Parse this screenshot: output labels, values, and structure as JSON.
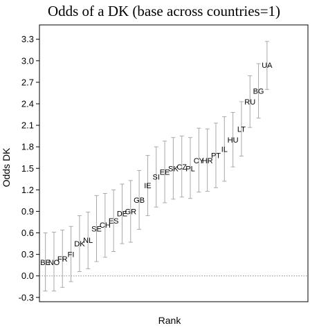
{
  "chart_data": {
    "type": "scatter",
    "title": "Odds of a DK (base across countries=1)",
    "xlabel": "Rank",
    "ylabel": "Odds DK",
    "ylim": [
      -0.36,
      3.5
    ],
    "xlim": [
      0.3,
      31.8
    ],
    "yticks": [
      "-0.3",
      "0.0",
      "0.3",
      "0.6",
      "0.9",
      "1.2",
      "1.5",
      "1.8",
      "2.1",
      "2.4",
      "2.7",
      "3.0",
      "3.3"
    ],
    "reference_line": 0.0,
    "grid": false,
    "legend": "none",
    "error_bar_color": "#a8a8a8",
    "points": [
      {
        "label": "BE",
        "x": 1,
        "y": 0.19,
        "lo": -0.21,
        "hi": 0.6
      },
      {
        "label": "NO",
        "x": 2,
        "y": 0.19,
        "lo": -0.21,
        "hi": 0.61
      },
      {
        "label": "FR",
        "x": 3,
        "y": 0.24,
        "lo": -0.16,
        "hi": 0.64
      },
      {
        "label": "FI",
        "x": 4,
        "y": 0.3,
        "lo": -0.08,
        "hi": 0.69
      },
      {
        "label": "DK",
        "x": 5,
        "y": 0.45,
        "lo": 0.06,
        "hi": 0.84
      },
      {
        "label": "NL",
        "x": 6,
        "y": 0.5,
        "lo": 0.1,
        "hi": 0.89
      },
      {
        "label": "SE",
        "x": 7,
        "y": 0.66,
        "lo": 0.2,
        "hi": 1.12
      },
      {
        "label": "CH",
        "x": 8,
        "y": 0.71,
        "lo": 0.26,
        "hi": 1.15
      },
      {
        "label": "ES",
        "x": 9,
        "y": 0.77,
        "lo": 0.34,
        "hi": 1.2
      },
      {
        "label": "DE",
        "x": 10,
        "y": 0.87,
        "lo": 0.45,
        "hi": 1.28
      },
      {
        "label": "GR",
        "x": 11,
        "y": 0.9,
        "lo": 0.47,
        "hi": 1.33
      },
      {
        "label": "GB",
        "x": 12,
        "y": 1.06,
        "lo": 0.65,
        "hi": 1.47
      },
      {
        "label": "IE",
        "x": 13,
        "y": 1.26,
        "lo": 0.84,
        "hi": 1.68
      },
      {
        "label": "SI",
        "x": 14,
        "y": 1.38,
        "lo": 0.96,
        "hi": 1.8
      },
      {
        "label": "EE",
        "x": 15,
        "y": 1.45,
        "lo": 1.02,
        "hi": 1.88
      },
      {
        "label": "SK",
        "x": 16,
        "y": 1.5,
        "lo": 1.07,
        "hi": 1.93
      },
      {
        "label": "CZ",
        "x": 17,
        "y": 1.52,
        "lo": 1.1,
        "hi": 1.95
      },
      {
        "label": "PL",
        "x": 18,
        "y": 1.5,
        "lo": 1.08,
        "hi": 1.93
      },
      {
        "label": "CY",
        "x": 19,
        "y": 1.61,
        "lo": 1.17,
        "hi": 2.06
      },
      {
        "label": "HR",
        "x": 20,
        "y": 1.61,
        "lo": 1.18,
        "hi": 2.05
      },
      {
        "label": "PT",
        "x": 21,
        "y": 1.68,
        "lo": 1.23,
        "hi": 2.13
      },
      {
        "label": "IL",
        "x": 22,
        "y": 1.77,
        "lo": 1.32,
        "hi": 2.22
      },
      {
        "label": "HU",
        "x": 23,
        "y": 1.9,
        "lo": 1.52,
        "hi": 2.28
      },
      {
        "label": "LT",
        "x": 24,
        "y": 2.05,
        "lo": 1.67,
        "hi": 2.43
      },
      {
        "label": "RU",
        "x": 25,
        "y": 2.43,
        "lo": 2.07,
        "hi": 2.79
      },
      {
        "label": "BG",
        "x": 26,
        "y": 2.58,
        "lo": 2.2,
        "hi": 2.96
      },
      {
        "label": "UA",
        "x": 27,
        "y": 2.94,
        "lo": 2.6,
        "hi": 3.27
      }
    ]
  }
}
